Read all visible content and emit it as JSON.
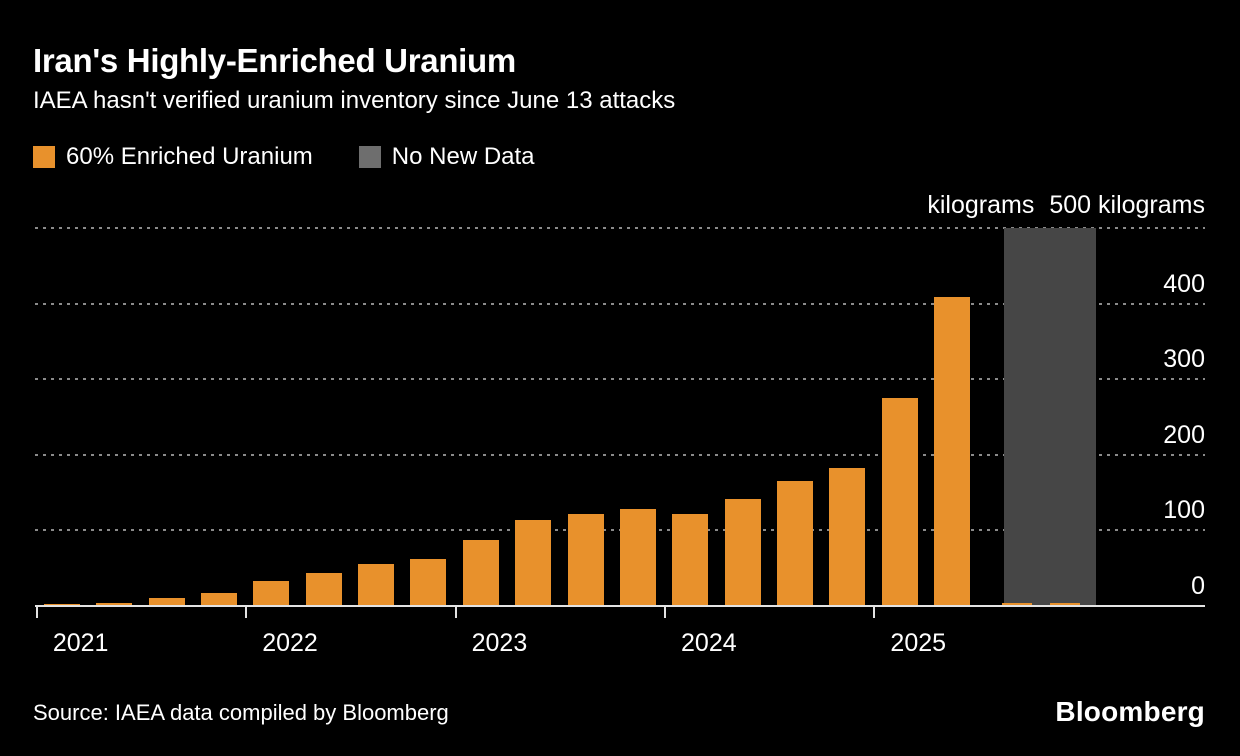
{
  "header": {
    "title": "Iran's Highly-Enriched Uranium",
    "subtitle": "IAEA hasn't verified uranium inventory since June 13 attacks"
  },
  "legend": {
    "items": [
      {
        "label": "60% Enriched Uranium",
        "color": "#E8912C"
      },
      {
        "label": "No New Data",
        "color": "#6E6E6E"
      }
    ]
  },
  "axis": {
    "unit_label": "kilograms",
    "top_tick_label": "500 kilograms",
    "years": [
      "2021",
      "2022",
      "2023",
      "2024",
      "2025"
    ]
  },
  "footer": {
    "source": "Source: IAEA data compiled by Bloomberg",
    "brand": "Bloomberg"
  },
  "chart_data": {
    "type": "bar",
    "title": "Iran's Highly-Enriched Uranium",
    "subtitle": "IAEA hasn't verified uranium inventory since June 13 attacks",
    "xlabel": "",
    "ylabel": "kilograms",
    "ylim": [
      0,
      500
    ],
    "yticks": [
      0,
      100,
      200,
      300,
      400,
      500
    ],
    "grid": "horizontal-dotted",
    "legend_position": "top-left",
    "categories_shown_on_axis": [
      "2021",
      "2022",
      "2023",
      "2024",
      "2025"
    ],
    "series": [
      {
        "name": "60% Enriched Uranium",
        "color": "#E8912C",
        "points": [
          {
            "year": "2021",
            "value": 2.4
          },
          {
            "year": "2021",
            "value": 3.9
          },
          {
            "year": "2021",
            "value": 10
          },
          {
            "year": "2021",
            "value": 17.7
          },
          {
            "year": "2022",
            "value": 33.2
          },
          {
            "year": "2022",
            "value": 43.1
          },
          {
            "year": "2022",
            "value": 55.6
          },
          {
            "year": "2022",
            "value": 62.3
          },
          {
            "year": "2023",
            "value": 87.5
          },
          {
            "year": "2023",
            "value": 114.1
          },
          {
            "year": "2023",
            "value": 121.6
          },
          {
            "year": "2023",
            "value": 128.3
          },
          {
            "year": "2024",
            "value": 121.5
          },
          {
            "year": "2024",
            "value": 142.1
          },
          {
            "year": "2024",
            "value": 164.7
          },
          {
            "year": "2024",
            "value": 182.3
          },
          {
            "year": "2025",
            "value": 274.8
          },
          {
            "year": "2025",
            "value": 408.6
          }
        ]
      },
      {
        "name": "No New Data",
        "color": "#464646",
        "points": [
          {
            "year": "2025",
            "value": 500
          }
        ]
      }
    ],
    "baseline_stub_values": [
      2,
      2
    ]
  }
}
